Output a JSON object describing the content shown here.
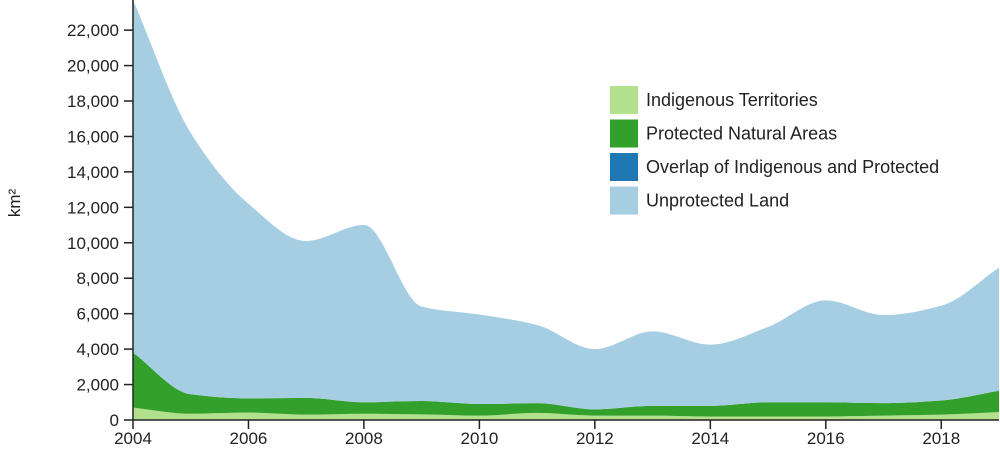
{
  "chart_data": {
    "type": "area",
    "stacked": true,
    "ylabel": "km²",
    "xlabel": "",
    "x": [
      2004,
      2005,
      2006,
      2007,
      2008,
      2009,
      2010,
      2011,
      2012,
      2013,
      2014,
      2015,
      2016,
      2017,
      2018,
      2019
    ],
    "xlim": [
      2004,
      2019
    ],
    "ylim": [
      0,
      23700
    ],
    "x_ticks": [
      "2004",
      "2006",
      "2008",
      "2010",
      "2012",
      "2014",
      "2016",
      "2018"
    ],
    "x_tick_values": [
      2004,
      2006,
      2008,
      2010,
      2012,
      2014,
      2016,
      2018
    ],
    "y_ticks": [
      "0",
      "2,000",
      "4,000",
      "6,000",
      "8,000",
      "10,000",
      "12,000",
      "14,000",
      "16,000",
      "18,000",
      "20,000",
      "22,000"
    ],
    "y_tick_values": [
      0,
      2000,
      4000,
      6000,
      8000,
      10000,
      12000,
      14000,
      16000,
      18000,
      20000,
      22000
    ],
    "series": [
      {
        "name": "Indigenous Territories",
        "color": "#b2e08c",
        "values": [
          700,
          350,
          420,
          300,
          350,
          320,
          250,
          400,
          250,
          250,
          200,
          200,
          200,
          250,
          300,
          450
        ]
      },
      {
        "name": "Protected Natural Areas",
        "color": "#33a02c",
        "values": [
          3100,
          1100,
          800,
          950,
          650,
          750,
          650,
          550,
          350,
          550,
          600,
          800,
          800,
          700,
          800,
          1200
        ]
      },
      {
        "name": "Overlap of Indigenous and Protected",
        "color": "#1f78b4",
        "values": [
          0,
          0,
          0,
          0,
          0,
          0,
          0,
          0,
          0,
          0,
          0,
          0,
          0,
          0,
          0,
          0
        ]
      },
      {
        "name": "Unprotected Land",
        "color": "#a6cee3",
        "values": [
          19900,
          14750,
          10980,
          8850,
          10000,
          5330,
          5050,
          4410,
          3400,
          4200,
          3450,
          4250,
          5750,
          4970,
          5350,
          6950
        ]
      }
    ],
    "legend_position": "top-right",
    "grid": false
  }
}
